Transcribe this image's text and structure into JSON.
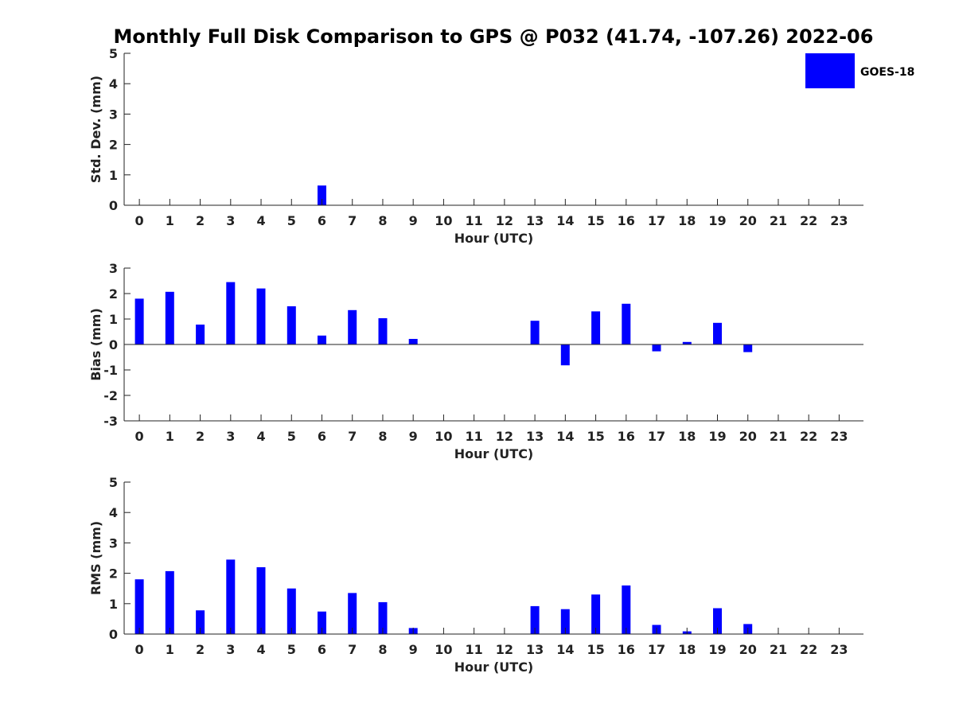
{
  "chart_data": {
    "title": "Monthly Full Disk Comparison to GPS @ P032 (41.74, -107.26) 2022-06",
    "legend": {
      "label": "GOES-18",
      "color": "#0000ff",
      "placement": "top-right"
    },
    "panels": [
      {
        "type": "bar",
        "ylabel": "Std. Dev. (mm)",
        "xlabel": "Hour (UTC)",
        "ylim": [
          0,
          5
        ],
        "yticks": [
          0,
          1,
          2,
          3,
          4,
          5
        ],
        "x": [
          0,
          1,
          2,
          3,
          4,
          5,
          6,
          7,
          8,
          9,
          10,
          11,
          12,
          13,
          14,
          15,
          16,
          17,
          18,
          19,
          20,
          21,
          22,
          23
        ],
        "values": [
          null,
          null,
          null,
          null,
          null,
          null,
          0.65,
          null,
          null,
          null,
          null,
          null,
          null,
          null,
          null,
          null,
          null,
          null,
          null,
          null,
          null,
          null,
          null,
          null
        ],
        "zero_line": false
      },
      {
        "type": "bar",
        "ylabel": "Bias (mm)",
        "xlabel": "Hour (UTC)",
        "ylim": [
          -3,
          3
        ],
        "yticks": [
          -3,
          -2,
          -1,
          0,
          1,
          2,
          3
        ],
        "x": [
          0,
          1,
          2,
          3,
          4,
          5,
          6,
          7,
          8,
          9,
          10,
          11,
          12,
          13,
          14,
          15,
          16,
          17,
          18,
          19,
          20,
          21,
          22,
          23
        ],
        "values": [
          1.8,
          2.07,
          0.78,
          2.45,
          2.2,
          1.5,
          0.35,
          1.35,
          1.03,
          0.22,
          null,
          null,
          null,
          0.93,
          -0.82,
          1.3,
          1.6,
          -0.27,
          0.1,
          0.85,
          -0.3,
          null,
          null,
          null
        ],
        "zero_line": true
      },
      {
        "type": "bar",
        "ylabel": "RMS (mm)",
        "xlabel": "Hour (UTC)",
        "ylim": [
          0,
          5
        ],
        "yticks": [
          0,
          1,
          2,
          3,
          4,
          5
        ],
        "x": [
          0,
          1,
          2,
          3,
          4,
          5,
          6,
          7,
          8,
          9,
          10,
          11,
          12,
          13,
          14,
          15,
          16,
          17,
          18,
          19,
          20,
          21,
          22,
          23
        ],
        "values": [
          1.8,
          2.07,
          0.78,
          2.45,
          2.2,
          1.5,
          0.74,
          1.35,
          1.05,
          0.2,
          null,
          null,
          null,
          0.92,
          0.82,
          1.3,
          1.6,
          0.3,
          0.09,
          0.85,
          0.33,
          null,
          null,
          null
        ],
        "zero_line": false
      }
    ]
  }
}
